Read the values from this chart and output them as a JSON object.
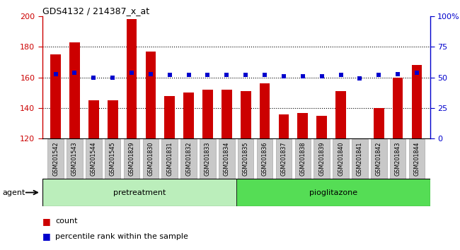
{
  "title": "GDS4132 / 214387_x_at",
  "categories": [
    "GSM201542",
    "GSM201543",
    "GSM201544",
    "GSM201545",
    "GSM201829",
    "GSM201830",
    "GSM201831",
    "GSM201832",
    "GSM201833",
    "GSM201834",
    "GSM201835",
    "GSM201836",
    "GSM201837",
    "GSM201838",
    "GSM201839",
    "GSM201840",
    "GSM201841",
    "GSM201842",
    "GSM201843",
    "GSM201844"
  ],
  "counts": [
    175,
    183,
    145,
    145,
    198,
    177,
    148,
    150,
    152,
    152,
    151,
    156,
    136,
    137,
    135,
    151,
    120,
    140,
    160,
    168
  ],
  "percentiles": [
    53,
    54,
    50,
    50,
    54,
    53,
    52,
    52,
    52,
    52,
    52,
    52,
    51,
    51,
    51,
    52,
    49,
    52,
    53,
    54
  ],
  "bar_color": "#cc0000",
  "dot_color": "#0000cc",
  "ylim_left": [
    120,
    200
  ],
  "ylim_right": [
    0,
    100
  ],
  "yticks_left": [
    120,
    140,
    160,
    180,
    200
  ],
  "yticks_right": [
    0,
    25,
    50,
    75,
    100
  ],
  "pretreatment_label": "pretreatment",
  "pioglitazone_label": "pioglitazone",
  "agent_label": "agent",
  "legend_count_label": "count",
  "legend_pct_label": "percentile rank within the sample",
  "bar_width": 0.55,
  "n_pretreatment": 10,
  "n_total": 20,
  "pretreatment_color": "#bbeebb",
  "pioglitazone_color": "#55dd55",
  "xtick_bg": "#c8c8c8",
  "xtick_border": "#999999"
}
